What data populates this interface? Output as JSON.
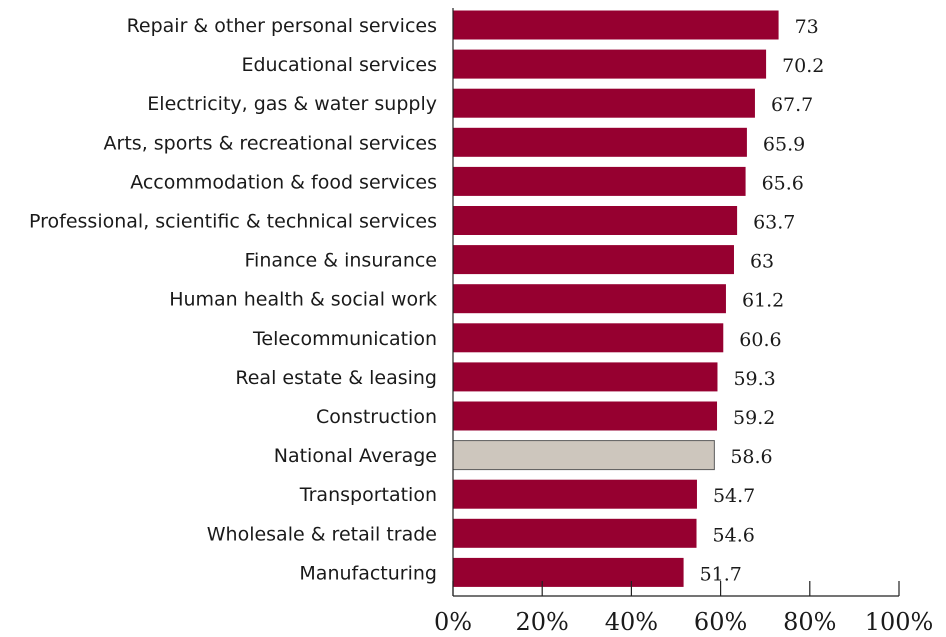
{
  "chart_data": {
    "type": "bar",
    "orientation": "horizontal",
    "categories": [
      "Repair & other personal services",
      "Educational services",
      "Electricity, gas & water supply",
      "Arts, sports & recreational services",
      "Accommodation & food services",
      "Professional, scientific & technical services",
      "Finance & insurance",
      "Human health & social work",
      "Telecommunication",
      "Real estate & leasing",
      "Construction",
      "National Average",
      "Transportation",
      "Wholesale & retail trade",
      "Manufacturing"
    ],
    "values": [
      73,
      70.2,
      67.7,
      65.9,
      65.6,
      63.7,
      63,
      61.2,
      60.6,
      59.3,
      59.2,
      58.6,
      54.7,
      54.6,
      51.7
    ],
    "value_labels": [
      "73",
      "70.2",
      "67.7",
      "65.9",
      "65.6",
      "63.7",
      "63",
      "61.2",
      "60.6",
      "59.3",
      "59.2",
      "58.6",
      "54.7",
      "54.6",
      "51.7"
    ],
    "highlight_category": "National Average",
    "colors": {
      "bar": "#960030",
      "highlight_bar": "#cdc6bd",
      "bar_outline": "#5a5a5a"
    },
    "xlim": [
      0,
      100
    ],
    "x_ticks": [
      0,
      20,
      40,
      60,
      80,
      100
    ],
    "x_tick_labels": [
      "0%",
      "20%",
      "40%",
      "60%",
      "80%",
      "100%"
    ],
    "title": "",
    "xlabel": "",
    "ylabel": "",
    "grid": false,
    "legend": "none"
  }
}
